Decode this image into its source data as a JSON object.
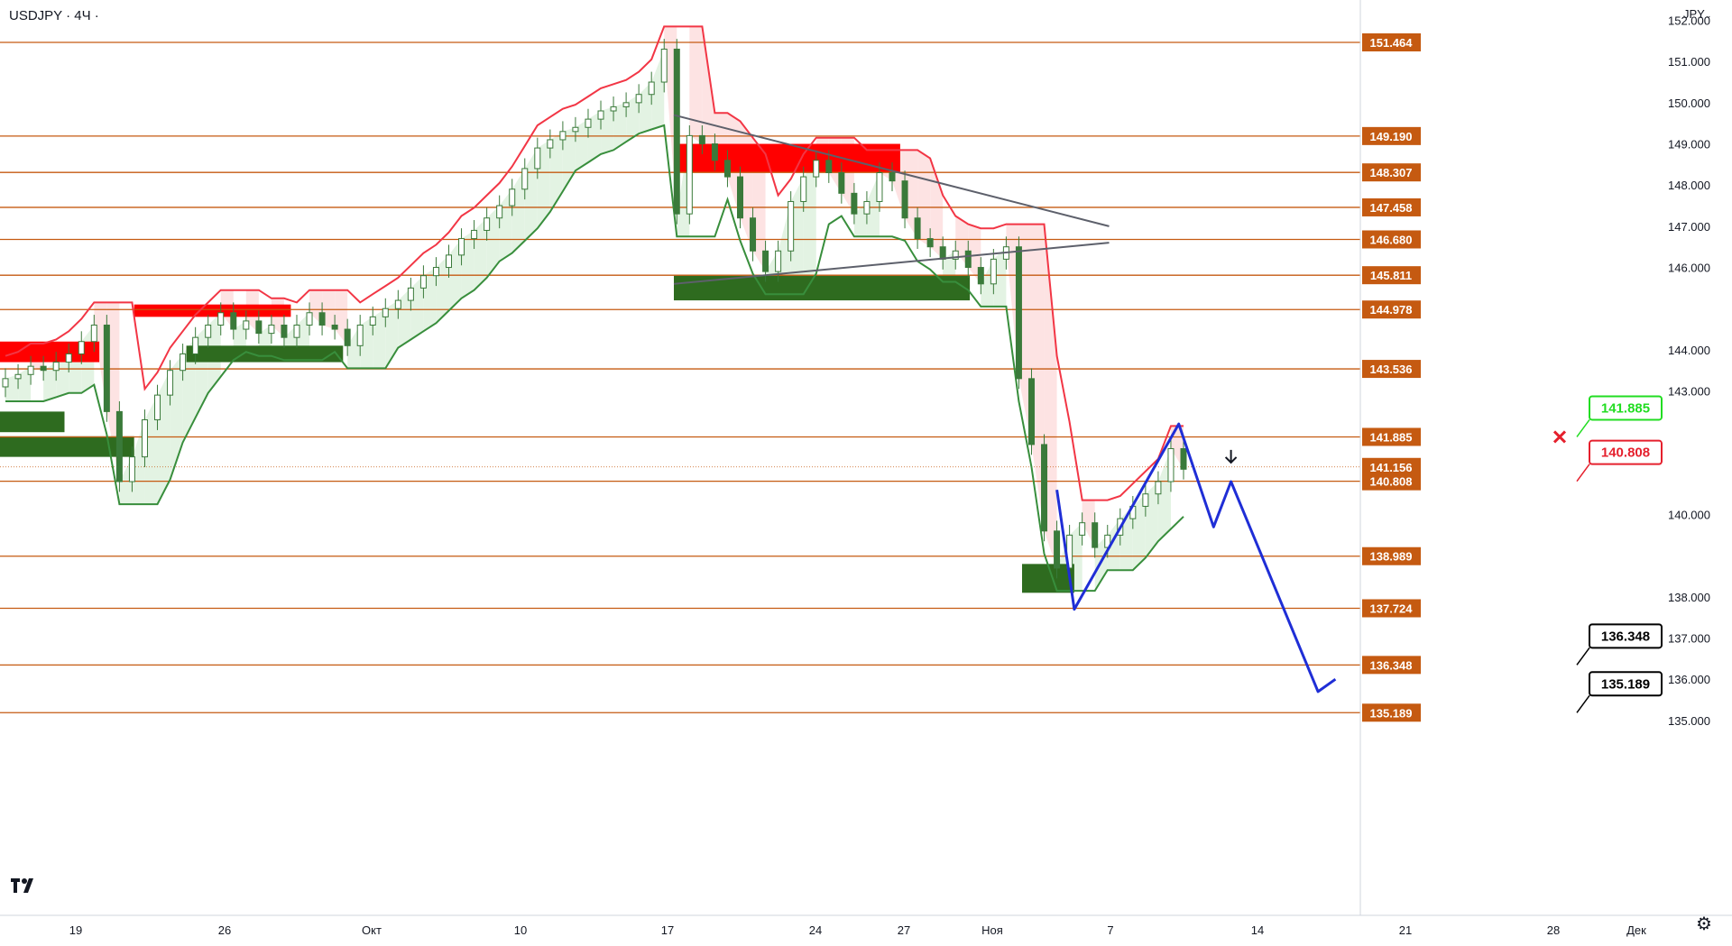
{
  "header": {
    "symbol": "USDJPY · 4Ч ·",
    "currency": "JPY"
  },
  "footer": {
    "settings_icon": "gear-icon",
    "logo_icon": "tradingview-logo-icon"
  },
  "colors": {
    "level_line": "#c55a11",
    "candle": "#3a7a3a",
    "upper_band": "#f23645",
    "lower_band": "#388e3c",
    "upper_fill": "#fde3e3",
    "lower_fill": "#e3f3e3",
    "supply_zone": "#ff0000",
    "demand_zone": "#2e6b1f",
    "trendline": "#5d606b",
    "forecast": "#1f2ed6",
    "target_box": "#000000",
    "stop_box": "#e5202d",
    "take_box": "#22dd22"
  },
  "chart_data": {
    "type": "candlestick",
    "title": "USDJPY · 4Ч ·",
    "ylim": [
      134.9,
      152.4
    ],
    "x_tick_labels": [
      "19",
      "26",
      "Окт",
      "10",
      "17",
      "24",
      "27",
      "Ноя",
      "7",
      "14",
      "21",
      "28",
      "Дек"
    ],
    "y_tick_labels": [
      "152.000",
      "151.000",
      "150.000",
      "149.000",
      "148.000",
      "147.000",
      "146.000",
      "144.000",
      "143.000",
      "140.000",
      "138.000",
      "137.000",
      "136.000",
      "135.000"
    ],
    "y_ticks": [
      152,
      151,
      150,
      149,
      148,
      147,
      146,
      144,
      143,
      140,
      138,
      137,
      136,
      135
    ],
    "price_levels": [
      {
        "value": 151.464,
        "label": "151.464"
      },
      {
        "value": 149.19,
        "label": "149.190"
      },
      {
        "value": 148.307,
        "label": "148.307"
      },
      {
        "value": 147.458,
        "label": "147.458"
      },
      {
        "value": 146.68,
        "label": "146.680"
      },
      {
        "value": 145.811,
        "label": "145.811"
      },
      {
        "value": 144.978,
        "label": "144.978"
      },
      {
        "value": 143.536,
        "label": "143.536"
      },
      {
        "value": 141.885,
        "label": "141.885"
      },
      {
        "value": 140.808,
        "label": "140.808"
      },
      {
        "value": 138.989,
        "label": "138.989"
      },
      {
        "value": 137.724,
        "label": "137.724"
      },
      {
        "value": 136.348,
        "label": "136.348"
      },
      {
        "value": 135.189,
        "label": "135.189"
      }
    ],
    "current_price": {
      "value": 141.156,
      "label": "141.156"
    },
    "close_series": [
      143.3,
      143.4,
      143.6,
      143.5,
      143.7,
      143.9,
      144.2,
      144.6,
      142.5,
      140.8,
      141.4,
      142.3,
      142.9,
      143.5,
      143.9,
      144.3,
      144.6,
      144.9,
      144.5,
      144.7,
      144.4,
      144.6,
      144.3,
      144.6,
      144.9,
      144.6,
      144.5,
      144.1,
      144.6,
      144.8,
      145.0,
      145.2,
      145.5,
      145.8,
      146.0,
      146.3,
      146.7,
      146.9,
      147.2,
      147.5,
      147.9,
      148.4,
      148.9,
      149.1,
      149.3,
      149.4,
      149.6,
      149.8,
      149.9,
      150.0,
      150.2,
      150.5,
      151.3,
      147.3,
      149.2,
      149.0,
      148.6,
      148.2,
      147.2,
      146.4,
      145.9,
      146.4,
      147.6,
      148.2,
      148.6,
      148.3,
      147.8,
      147.3,
      147.6,
      148.3,
      148.1,
      147.2,
      146.7,
      146.5,
      146.2,
      146.4,
      146.0,
      145.6,
      146.2,
      146.5,
      143.3,
      141.7,
      139.6,
      138.7,
      139.5,
      139.8,
      139.2,
      139.5,
      139.9,
      140.2,
      140.5,
      140.8,
      141.6,
      141.1
    ],
    "supply_zones": [
      {
        "y_top": 144.2,
        "y_bottom": 143.7,
        "x_start": "Sep 14",
        "x_end": "Sep 21"
      },
      {
        "y_top": 145.1,
        "y_bottom": 144.8,
        "x_start": "Sep 23",
        "x_end": "Oct 2"
      },
      {
        "y_top": 149.0,
        "y_bottom": 148.3,
        "x_start": "Oct 24",
        "x_end": "Nov 6"
      }
    ],
    "demand_zones": [
      {
        "y_top": 142.5,
        "y_bottom": 142.0,
        "x_start": "Sep 14",
        "x_end": "Sep 19"
      },
      {
        "y_top": 141.9,
        "y_bottom": 141.4,
        "x_start": "Sep 14",
        "x_end": "Sep 23"
      },
      {
        "y_top": 144.1,
        "y_bottom": 143.7,
        "x_start": "Sep 26",
        "x_end": "Oct 5"
      },
      {
        "y_top": 145.8,
        "y_bottom": 145.2,
        "x_start": "Oct 24",
        "x_end": "Nov 10"
      },
      {
        "y_top": 138.8,
        "y_bottom": 138.1,
        "x_start": "Nov 13",
        "x_end": "Nov 16"
      }
    ],
    "trendlines": [
      {
        "from": {
          "date": "Oct 24",
          "price": 149.7
        },
        "to": {
          "date": "Nov 18",
          "price": 147.0
        }
      },
      {
        "from": {
          "date": "Oct 24",
          "price": 145.6
        },
        "to": {
          "date": "Nov 18",
          "price": 146.6
        }
      }
    ],
    "forecast_path": [
      {
        "date": "Nov 15",
        "price": 140.6
      },
      {
        "date": "Nov 16",
        "price": 137.7
      },
      {
        "date": "Nov 22",
        "price": 142.2
      },
      {
        "date": "Nov 24",
        "price": 139.7
      },
      {
        "date": "Nov 25",
        "price": 140.8
      },
      {
        "date": "Nov 30",
        "price": 135.7
      },
      {
        "date": "Dec 1",
        "price": 136.0
      }
    ],
    "callouts": [
      {
        "label": "141.885",
        "value": 141.885,
        "style": "take"
      },
      {
        "label": "140.808",
        "value": 140.808,
        "style": "stop"
      },
      {
        "label": "136.348",
        "value": 136.348,
        "style": "target"
      },
      {
        "label": "135.189",
        "value": 135.189,
        "style": "target"
      }
    ]
  }
}
